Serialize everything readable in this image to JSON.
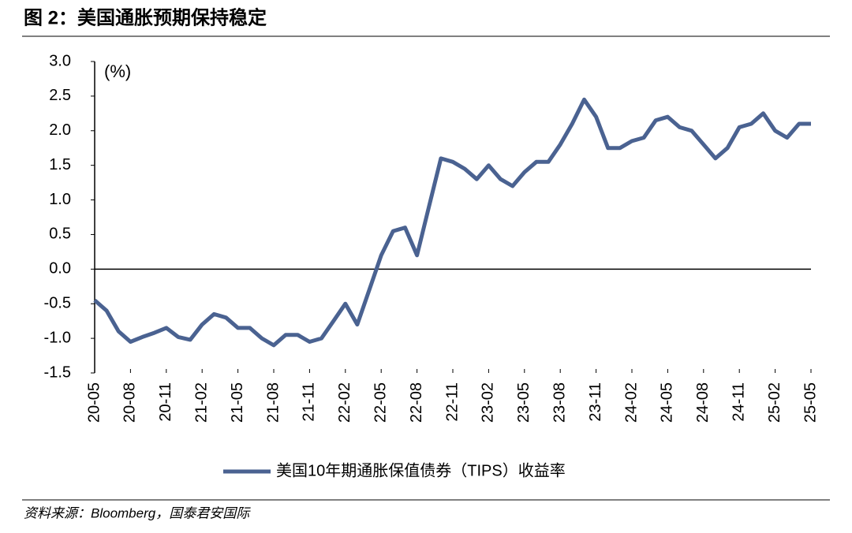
{
  "chart_data": {
    "type": "line",
    "title": "图 2：美国通胀预期保持稳定",
    "unit_label": "(%)",
    "source": "资料来源：Bloomberg，国泰君安国际",
    "x": [
      "20-05",
      "20-06",
      "20-07",
      "20-08",
      "20-09",
      "20-10",
      "20-11",
      "20-12",
      "21-01",
      "21-02",
      "21-03",
      "21-04",
      "21-05",
      "21-06",
      "21-07",
      "21-08",
      "21-09",
      "21-10",
      "21-11",
      "21-12",
      "22-01",
      "22-02",
      "22-03",
      "22-04",
      "22-05",
      "22-06",
      "22-07",
      "22-08",
      "22-09",
      "22-10",
      "22-11",
      "22-12",
      "23-01",
      "23-02",
      "23-03",
      "23-04",
      "23-05",
      "23-06",
      "23-07",
      "23-08",
      "23-09",
      "23-10",
      "23-11",
      "23-12",
      "24-01",
      "24-02",
      "24-03",
      "24-04",
      "24-05",
      "24-06",
      "24-07",
      "24-08",
      "24-09",
      "24-10",
      "24-11",
      "24-12",
      "25-01",
      "25-02",
      "25-03",
      "25-04",
      "25-05"
    ],
    "xticks": [
      "20-05",
      "20-08",
      "20-11",
      "21-02",
      "21-05",
      "21-08",
      "21-11",
      "22-02",
      "22-05",
      "22-08",
      "22-11",
      "23-02",
      "23-05",
      "23-08",
      "23-11",
      "24-02",
      "24-05",
      "24-08",
      "24-11",
      "25-02",
      "25-05"
    ],
    "series": [
      {
        "name": "美国10年期通胀保值债券（TIPS）收益率",
        "color": "#4a6291",
        "values": [
          -0.45,
          -0.6,
          -0.9,
          -1.05,
          -0.98,
          -0.92,
          -0.85,
          -0.98,
          -1.02,
          -0.8,
          -0.65,
          -0.7,
          -0.85,
          -0.85,
          -1.0,
          -1.1,
          -0.95,
          -0.95,
          -1.05,
          -1.0,
          -0.75,
          -0.5,
          -0.8,
          -0.3,
          0.2,
          0.55,
          0.6,
          0.2,
          0.9,
          1.6,
          1.55,
          1.45,
          1.3,
          1.5,
          1.3,
          1.2,
          1.4,
          1.55,
          1.55,
          1.8,
          2.1,
          2.45,
          2.2,
          1.75,
          1.75,
          1.85,
          1.9,
          2.15,
          2.2,
          2.05,
          2.0,
          1.8,
          1.6,
          1.75,
          2.05,
          2.1,
          2.25,
          2.0,
          1.9,
          2.1,
          2.1
        ]
      }
    ],
    "ylim": [
      -1.5,
      3.0
    ],
    "yticks": [
      {
        "value": -1.5,
        "label": "-1.5"
      },
      {
        "value": -1.0,
        "label": "-1.0"
      },
      {
        "value": -0.5,
        "label": "-0.5"
      },
      {
        "value": 0,
        "label": "0.0"
      },
      {
        "value": 0.5,
        "label": "0.5"
      },
      {
        "value": 1.0,
        "label": "1.0"
      },
      {
        "value": 1.5,
        "label": "1.5"
      },
      {
        "value": 2.0,
        "label": "2.0"
      },
      {
        "value": 2.5,
        "label": "2.5"
      },
      {
        "value": 3.0,
        "label": "3.0"
      }
    ],
    "legend": "bottom"
  }
}
